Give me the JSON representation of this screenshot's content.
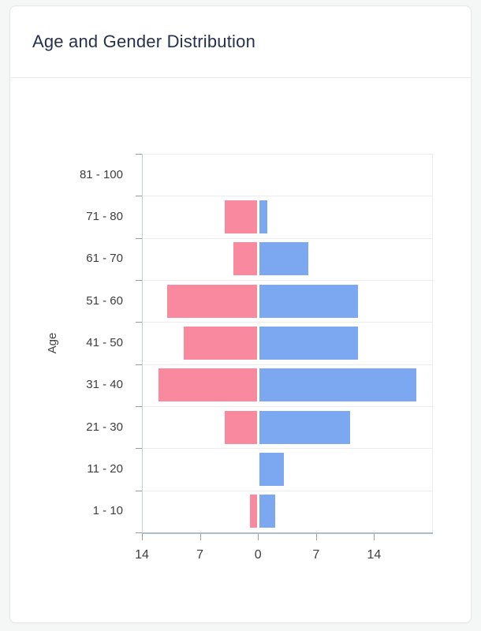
{
  "card": {
    "title": "Age and Gender Distribution"
  },
  "colors": {
    "pink_bar": "#F9899E",
    "blue_bar": "#7BA8F1",
    "title_text": "#26324B",
    "axis_text": "#3E3E3E",
    "gridline": "#EDEDED",
    "x_axis_line": "#A9BDD1",
    "y_axis_line": "#C3CFDB",
    "card_background": "#FFFFFF",
    "page_background": "#F5F6F6"
  },
  "chart_data": {
    "type": "bar",
    "variant": "population-pyramid-horizontal",
    "title": "Age and Gender Distribution",
    "xlabel": "",
    "ylabel": "Age",
    "legend": "none",
    "grid": "horizontal",
    "categories": [
      "81 - 100",
      "71 - 80",
      "61 - 70",
      "51 - 60",
      "41 - 50",
      "31 - 40",
      "21 - 30",
      "11 - 20",
      "1 - 10"
    ],
    "series": [
      {
        "name": "left-pink",
        "color": "#F9899E",
        "direction": "left",
        "values": [
          0,
          4,
          3,
          11,
          9,
          12,
          4,
          0,
          1
        ]
      },
      {
        "name": "right-blue",
        "color": "#7BA8F1",
        "direction": "right",
        "values": [
          0,
          1,
          6,
          12,
          12,
          19,
          11,
          3,
          2
        ]
      }
    ],
    "x_axis": {
      "range": [
        -14,
        21
      ],
      "tick_values": [
        -14,
        -7,
        0,
        7,
        14
      ],
      "tick_labels": [
        "14",
        "7",
        "0",
        "7",
        "14"
      ]
    }
  }
}
